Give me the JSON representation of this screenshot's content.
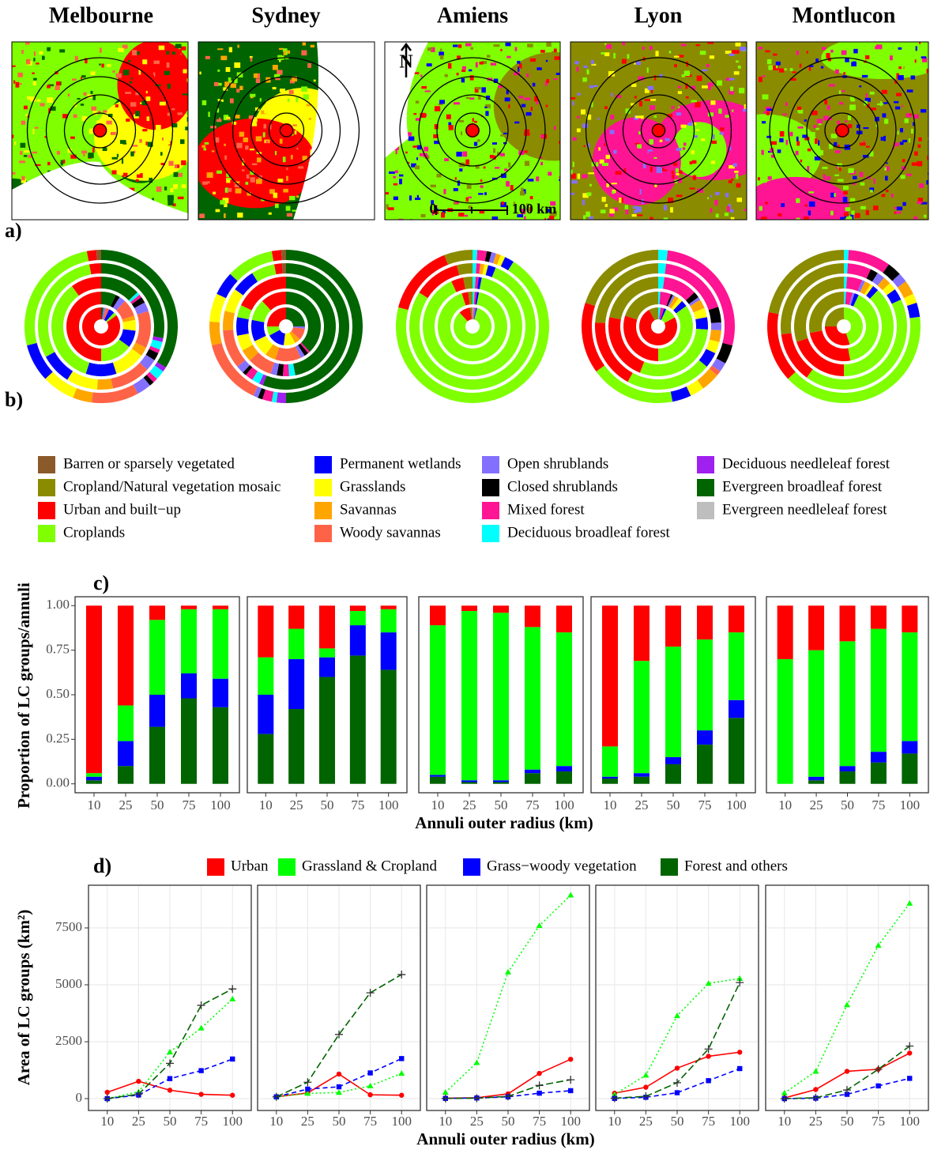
{
  "cities": [
    "Melbourne",
    "Sydney",
    "Amiens",
    "Lyon",
    "Montlucon"
  ],
  "panel_labels": [
    "a)",
    "b)",
    "c)",
    "d)"
  ],
  "map": {
    "north": "N",
    "scale_start": "0",
    "scale_end": "100 km"
  },
  "chart_data": [
    {
      "type": "donut",
      "classes": [
        "Barren or sparsely vegetated",
        "Cropland/Natural vegetation mosaic",
        "Urban and built−up",
        "Croplands",
        "Permanent wetlands",
        "Grasslands",
        "Savannas",
        "Woody savannas",
        "Open shrublands",
        "Closed shrublands",
        "Mixed forest",
        "Deciduous broadleaf forest",
        "Deciduous needleleaf forest",
        "Evergreen broadleaf forest",
        "Evergreen needleleaf forest"
      ],
      "colors": [
        "#8b5a2b",
        "#8b8b00",
        "#ff0000",
        "#7fff00",
        "#0000ff",
        "#ffff00",
        "#ffa500",
        "#ff6347",
        "#8470ff",
        "#000000",
        "#ff1493",
        "#00ffff",
        "#a020f0",
        "#006400",
        "#bebebe"
      ],
      "panels": [
        {
          "rings": [
            [
              0,
              0,
              85,
              3,
              5,
              0,
              0,
              3,
              2,
              0,
              0,
              0,
              0,
              2,
              0
            ],
            [
              0,
              0,
              50,
              15,
              8,
              5,
              2,
              8,
              3,
              2,
              0,
              0,
              0,
              7,
              0
            ],
            [
              0,
              0,
              10,
              35,
              10,
              10,
              3,
              12,
              3,
              2,
              1,
              1,
              0,
              13,
              0
            ],
            [
              0,
              0,
              3,
              30,
              8,
              8,
              4,
              10,
              3,
              2,
              1,
              2,
              1,
              28,
              0
            ],
            [
              1,
              0,
              2,
              26,
              8,
              7,
              4,
              10,
              3,
              1,
              1,
              2,
              1,
              34,
              0
            ]
          ]
        },
        {
          "rings": [
            [
              0,
              0,
              25,
              8,
              15,
              10,
              5,
              10,
              2,
              0,
              0,
              0,
              0,
              25,
              0
            ],
            [
              0,
              0,
              12,
              10,
              10,
              8,
              5,
              12,
              2,
              2,
              1,
              0,
              0,
              38,
              0
            ],
            [
              0,
              0,
              18,
              4,
              6,
              5,
              4,
              8,
              2,
              2,
              2,
              2,
              0,
              47,
              0
            ],
            [
              1,
              0,
              2,
              6,
              6,
              6,
              5,
              10,
              2,
              1,
              2,
              2,
              1,
              56,
              0
            ],
            [
              1,
              0,
              2,
              10,
              5,
              6,
              5,
              14,
              1,
              1,
              2,
              1,
              2,
              50,
              0
            ]
          ]
        },
        {
          "rings": [
            [
              0,
              2,
              10,
              84,
              1,
              0,
              0,
              0,
              1,
              0,
              1,
              0,
              0,
              0,
              1
            ],
            [
              0,
              2,
              3,
              92,
              1,
              0,
              0,
              0,
              0,
              0,
              1,
              1,
              0,
              0,
              0
            ],
            [
              0,
              3,
              4,
              90,
              1,
              0,
              0,
              0,
              0,
              0,
              1,
              1,
              0,
              0,
              0
            ],
            [
              0,
              4,
              12,
              78,
              2,
              1,
              1,
              0,
              0,
              0,
              1,
              1,
              0,
              0,
              0
            ],
            [
              0,
              6,
              15,
              70,
              2,
              1,
              1,
              0,
              1,
              1,
              2,
              1,
              0,
              0,
              0
            ]
          ]
        },
        {
          "rings": [
            [
              0,
              8,
              75,
              10,
              2,
              0,
              0,
              0,
              0,
              0,
              3,
              2,
              0,
              0,
              0
            ],
            [
              0,
              20,
              30,
              35,
              3,
              2,
              2,
              0,
              1,
              1,
              5,
              1,
              0,
              0,
              0
            ],
            [
              0,
              22,
              22,
              30,
              4,
              3,
              3,
              0,
              1,
              2,
              11,
              2,
              0,
              0,
              0
            ],
            [
              0,
              24,
              18,
              22,
              4,
              3,
              3,
              0,
              2,
              4,
              18,
              2,
              0,
              0,
              0
            ],
            [
              0,
              20,
              15,
              18,
              4,
              3,
              4,
              1,
              2,
              4,
              27,
              2,
              0,
              0,
              0
            ]
          ]
        },
        {
          "rings": [
            [
              0,
              25,
              30,
              45,
              0,
              0,
              0,
              0,
              0,
              0,
              0,
              0,
              0,
              0,
              0
            ],
            [
              0,
              28,
              25,
              40,
              2,
              0,
              0,
              0,
              1,
              0,
              3,
              1,
              0,
              0,
              0
            ],
            [
              0,
              30,
              20,
              38,
              2,
              1,
              2,
              0,
              1,
              0,
              5,
              1,
              0,
              0,
              0
            ],
            [
              0,
              27,
              13,
              42,
              3,
              2,
              2,
              0,
              2,
              2,
              6,
              1,
              0,
              0,
              0
            ],
            [
              0,
              22,
              15,
              40,
              3,
              2,
              3,
              0,
              2,
              3,
              9,
              1,
              0,
              0,
              0
            ]
          ]
        }
      ]
    },
    {
      "type": "stacked-bar",
      "ylabel": "Proportion of LC groups/annuli",
      "xlabel": "Annuli outer radius (km)",
      "categories": [
        10,
        25,
        50,
        75,
        100
      ],
      "ylim": [
        -0.05,
        1.05
      ],
      "yticks": [
        {
          "value": 0,
          "label": "0.00"
        },
        {
          "value": 0.25,
          "label": "0.25"
        },
        {
          "value": 0.5,
          "label": "0.50"
        },
        {
          "value": 0.75,
          "label": "0.75"
        },
        {
          "value": 1,
          "label": "1.00"
        }
      ],
      "colors": [
        "#ff0000",
        "#00ff00",
        "#0000ff",
        "#006400"
      ],
      "panels": [
        {
          "values": [
            [
              0.94,
              0.56,
              0.08,
              0.02,
              0.02
            ],
            [
              0.02,
              0.2,
              0.42,
              0.36,
              0.39
            ],
            [
              0.02,
              0.14,
              0.18,
              0.14,
              0.16
            ],
            [
              0.02,
              0.1,
              0.32,
              0.48,
              0.43
            ]
          ]
        },
        {
          "values": [
            [
              0.29,
              0.13,
              0.24,
              0.03,
              0.02
            ],
            [
              0.21,
              0.17,
              0.05,
              0.08,
              0.13
            ],
            [
              0.22,
              0.28,
              0.11,
              0.17,
              0.21
            ],
            [
              0.28,
              0.42,
              0.6,
              0.72,
              0.64
            ]
          ]
        },
        {
          "values": [
            [
              0.11,
              0.03,
              0.04,
              0.12,
              0.15
            ],
            [
              0.84,
              0.95,
              0.94,
              0.8,
              0.75
            ],
            [
              0.01,
              0.01,
              0.01,
              0.02,
              0.03
            ],
            [
              0.04,
              0.01,
              0.01,
              0.06,
              0.07
            ]
          ]
        },
        {
          "values": [
            [
              0.79,
              0.31,
              0.23,
              0.19,
              0.15
            ],
            [
              0.17,
              0.63,
              0.62,
              0.51,
              0.38
            ],
            [
              0.01,
              0.02,
              0.04,
              0.08,
              0.1
            ],
            [
              0.03,
              0.04,
              0.11,
              0.22,
              0.37
            ]
          ]
        },
        {
          "values": [
            [
              0.3,
              0.25,
              0.2,
              0.13,
              0.15
            ],
            [
              0.7,
              0.71,
              0.7,
              0.69,
              0.61
            ],
            [
              0.0,
              0.02,
              0.03,
              0.06,
              0.07
            ],
            [
              0.0,
              0.02,
              0.07,
              0.12,
              0.17
            ]
          ]
        }
      ]
    },
    {
      "type": "line",
      "ylabel": "Area of LC groups (km²)",
      "xlabel": "Annuli outer radius (km)",
      "categories": [
        10,
        25,
        50,
        75,
        100
      ],
      "ylim": [
        -520,
        9375
      ],
      "yticks": [
        0,
        2500,
        5000,
        7500
      ],
      "grid": true,
      "series": [
        {
          "name": "Urban",
          "color": "#ff0000",
          "marker": "circle",
          "dash": "solid"
        },
        {
          "name": "Grassland & Cropland",
          "color": "#00ff00",
          "marker": "triangle",
          "dash": "dotted"
        },
        {
          "name": "Grass−woody vegetation",
          "color": "#0000ff",
          "marker": "square",
          "dash": "dashed"
        },
        {
          "name": "Forest and others",
          "color": "#006400",
          "marker": "plus",
          "dash": "longdash"
        }
      ],
      "panels": [
        {
          "values": [
            [
              280,
              760,
              370,
              190,
              150
            ],
            [
              0,
              300,
              2050,
              3100,
              4380
            ],
            [
              0,
              160,
              880,
              1230,
              1740
            ],
            [
              0,
              200,
              1550,
              4100,
              4820
            ]
          ]
        },
        {
          "values": [
            [
              80,
              250,
              1080,
              170,
              150
            ],
            [
              80,
              230,
              270,
              560,
              1110
            ],
            [
              80,
              420,
              520,
              1130,
              1760
            ],
            [
              80,
              720,
              2820,
              4650,
              5450
            ]
          ]
        },
        {
          "values": [
            [
              20,
              40,
              210,
              1110,
              1730
            ],
            [
              280,
              1580,
              5560,
              7600,
              8940
            ],
            [
              10,
              30,
              80,
              240,
              350
            ],
            [
              10,
              20,
              100,
              580,
              830
            ]
          ]
        },
        {
          "values": [
            [
              240,
              500,
              1340,
              1860,
              2040
            ],
            [
              180,
              1030,
              3640,
              5060,
              5280
            ],
            [
              10,
              60,
              260,
              790,
              1320
            ],
            [
              20,
              100,
              700,
              2180,
              5100
            ]
          ]
        },
        {
          "values": [
            [
              30,
              400,
              1200,
              1290,
              2000
            ],
            [
              250,
              1200,
              4120,
              6730,
              8580
            ],
            [
              0,
              20,
              190,
              560,
              890
            ],
            [
              0,
              40,
              380,
              1290,
              2310
            ]
          ]
        }
      ]
    }
  ]
}
